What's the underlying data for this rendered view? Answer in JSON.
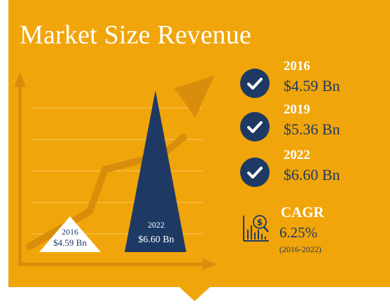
{
  "title": "Market Size Revenue",
  "colors": {
    "background": "#f0a50a",
    "navy": "#1e3a64",
    "arrow": "#d88e0a",
    "white": "#ffffff"
  },
  "icons": [
    "check-circle-icon",
    "check-circle-icon",
    "check-circle-icon",
    "dollar-chart-icon"
  ],
  "stats": [
    {
      "year": "2016",
      "value": "$4.59 Bn"
    },
    {
      "year": "2019",
      "value": "$5.36 Bn"
    },
    {
      "year": "2022",
      "value": "$6.60 Bn"
    }
  ],
  "cagr": {
    "label": "CAGR",
    "value": "6.25%",
    "period": "(2016-2022)"
  },
  "chart_data": {
    "type": "area",
    "title": "Market Size Revenue",
    "series": [
      {
        "x": "2016",
        "value": 4.59,
        "year_label": "2016",
        "value_label": "$4.59 Bn"
      },
      {
        "x": "2022",
        "value": 6.6,
        "year_label": "2022",
        "value_label": "$6.60 Bn"
      }
    ],
    "ylim": [
      0,
      6.6
    ],
    "grid": true
  }
}
